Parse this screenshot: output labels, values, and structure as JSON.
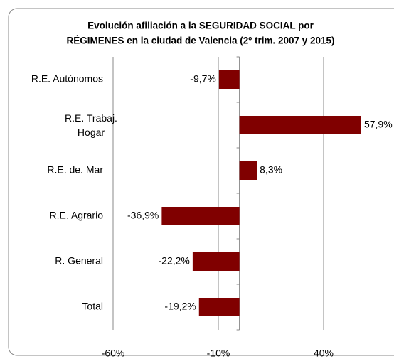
{
  "chart_data": {
    "type": "barh",
    "title": [
      "Evolución afiliación a la SEGURIDAD SOCIAL por",
      "RÉGIMENES en la ciudad de Valencia (2º trim. 2007 y 2015)"
    ],
    "categories": [
      "R.E. Autónomos",
      "R.E. Trabaj. Hogar",
      "R.E. de. Mar",
      "R.E. Agrario",
      "R. General",
      "Total"
    ],
    "values": [
      -9.7,
      57.9,
      8.3,
      -36.9,
      -22.2,
      -19.2
    ],
    "value_labels": [
      "-9,7%",
      "57,9%",
      "8,3%",
      "-36,9%",
      "-22,2%",
      "-19,2%"
    ],
    "color": "#800000",
    "xlim": [
      -60,
      90
    ],
    "xticks": [
      {
        "value": -60,
        "label": "-60%"
      },
      {
        "value": -10,
        "label": "-10%"
      },
      {
        "value": 40,
        "label": "40%"
      }
    ],
    "grid": true
  }
}
